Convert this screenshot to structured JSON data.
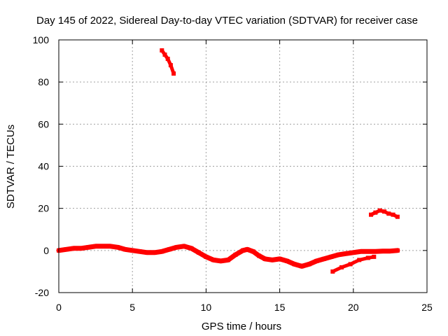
{
  "chart_data": {
    "type": "line",
    "title": "Day 145 of 2022, Sidereal Day-to-day VTEC variation (SDTVAR) for receiver case",
    "xlabel": "GPS time / hours",
    "ylabel": "SDTVAR / TECUs",
    "xlim": [
      0,
      25
    ],
    "ylim": [
      -20,
      100
    ],
    "xticks": [
      0,
      5,
      10,
      15,
      20,
      25
    ],
    "yticks": [
      -20,
      0,
      20,
      40,
      60,
      80,
      100
    ],
    "xtick_labels": [
      "0",
      "5",
      "10",
      "15",
      "20",
      "25"
    ],
    "ytick_labels": [
      "-20",
      "0",
      "20",
      "40",
      "60",
      "80",
      "100"
    ],
    "grid": true,
    "series_color": "#ff0000",
    "series": [
      {
        "name": "main-trace",
        "x": [
          0.0,
          0.5,
          1.0,
          1.5,
          2.0,
          2.5,
          3.0,
          3.5,
          4.0,
          4.5,
          5.0,
          5.5,
          6.0,
          6.5,
          7.0,
          7.5,
          8.0,
          8.5,
          9.0,
          9.5,
          10.0,
          10.5,
          11.0,
          11.5,
          12.0,
          12.5,
          12.8,
          13.2,
          13.6,
          14.0,
          14.5,
          15.0,
          15.5,
          16.0,
          16.5,
          17.0,
          17.5,
          18.0,
          18.5,
          19.0,
          19.5,
          20.0,
          20.5,
          21.0,
          21.5,
          22.0,
          22.5,
          23.0
        ],
        "y": [
          0.0,
          0.5,
          1.0,
          1.0,
          1.5,
          2.0,
          2.0,
          2.0,
          1.5,
          0.5,
          0.0,
          -0.5,
          -1.0,
          -1.0,
          -0.5,
          0.5,
          1.5,
          2.0,
          1.0,
          -1.0,
          -3.0,
          -4.5,
          -5.0,
          -4.5,
          -2.0,
          0.0,
          0.5,
          -0.5,
          -2.5,
          -4.0,
          -4.5,
          -4.0,
          -5.0,
          -6.5,
          -7.5,
          -6.5,
          -5.0,
          -4.0,
          -3.0,
          -2.0,
          -1.5,
          -1.0,
          -0.5,
          -0.5,
          -0.5,
          -0.3,
          -0.3,
          0.0
        ]
      },
      {
        "name": "lower-branch",
        "x": [
          18.6,
          19.2,
          19.8,
          20.4,
          21.0,
          21.4
        ],
        "y": [
          -10.0,
          -8.0,
          -6.5,
          -4.5,
          -3.5,
          -3.0
        ]
      },
      {
        "name": "hour7-arc",
        "x": [
          7.0,
          7.2,
          7.4,
          7.6,
          7.8
        ],
        "y": [
          95.0,
          93.0,
          91.0,
          88.0,
          84.0
        ]
      },
      {
        "name": "hour21-arc",
        "x": [
          21.2,
          21.5,
          21.8,
          22.1,
          22.4,
          22.7,
          23.0
        ],
        "y": [
          17.0,
          18.0,
          19.0,
          18.5,
          17.5,
          17.0,
          16.0
        ]
      }
    ]
  }
}
